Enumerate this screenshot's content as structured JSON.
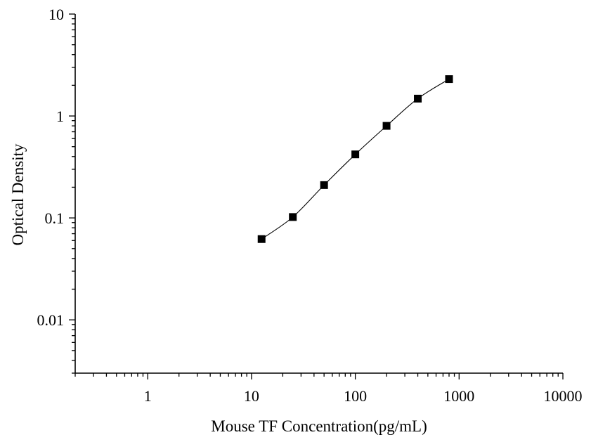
{
  "chart_data": {
    "type": "scatter",
    "title": "",
    "xlabel": "Mouse TF Concentration(pg/mL)",
    "ylabel": "Optical Density",
    "x_scale": "log",
    "y_scale": "log",
    "xlim": [
      0.2,
      10000
    ],
    "ylim": [
      0.003,
      10
    ],
    "x_ticks": [
      1,
      10,
      100,
      1000,
      10000
    ],
    "x_tick_labels": [
      "1",
      "10",
      "100",
      "1000",
      "10000"
    ],
    "y_ticks": [
      0.01,
      0.1,
      1,
      10
    ],
    "y_tick_labels": [
      "0.01",
      "0.1",
      "1",
      "10"
    ],
    "grid": false,
    "series": [
      {
        "marker": "square",
        "color": "#000000",
        "fit_line": true,
        "x": [
          12.5,
          25,
          50,
          100,
          200,
          400,
          800
        ],
        "y": [
          0.062,
          0.102,
          0.21,
          0.42,
          0.8,
          1.48,
          2.3
        ]
      }
    ]
  }
}
